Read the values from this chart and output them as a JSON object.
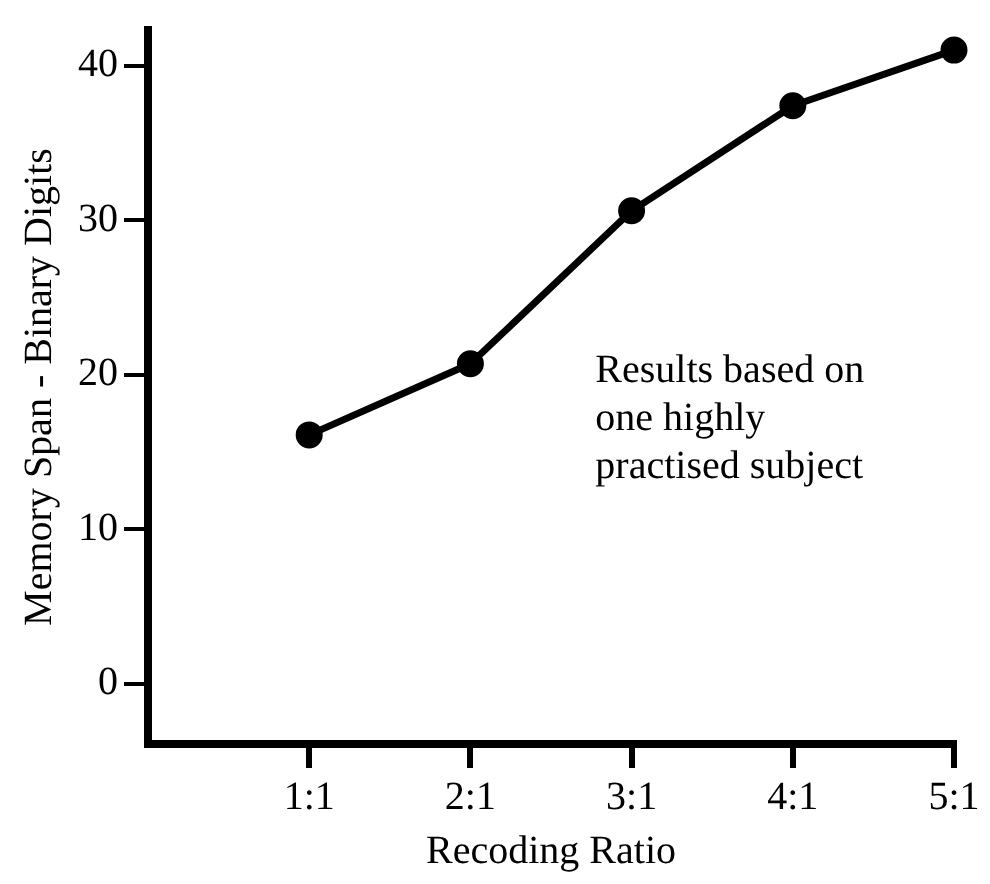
{
  "chart_data": {
    "type": "line",
    "xlabel": "Recoding Ratio",
    "ylabel": "Memory Span - Binary Digits",
    "categories": [
      "1:1",
      "2:1",
      "3:1",
      "4:1",
      "5:1"
    ],
    "series": [
      {
        "color": "#000000",
        "values": [
          16.1,
          20.7,
          30.6,
          37.4,
          41.0
        ]
      }
    ],
    "ylim": [
      -3.9,
      42.3
    ],
    "yticks": [
      0,
      10,
      20,
      30,
      40
    ],
    "grid": false,
    "legend": false,
    "marker": "circle",
    "line_style": "solid",
    "annotations": [
      "Results based on one highly practised subject"
    ]
  }
}
